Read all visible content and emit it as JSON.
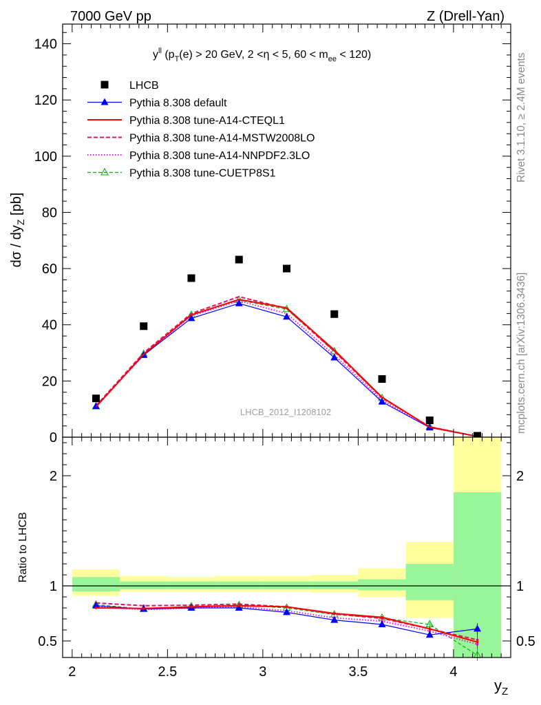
{
  "header": {
    "left": "7000 GeV pp",
    "right": "Z (Drell-Yan)"
  },
  "side_labels": {
    "rivet": "Rivet 3.1.10, ≥ 2.4M events",
    "mcplots": "mcplots.cern.ch [arXiv:1306.3436]"
  },
  "watermark": "LHCB_2012_I1208102",
  "cut_text": {
    "y_main": "y",
    "y_sup": "ll",
    "p1": " (p",
    "p_sub": "T",
    "p2": "(e) > 20 GeV, 2 <η < 5, 60 < m",
    "m_sub": "ee",
    "p3": " < 120)"
  },
  "colors": {
    "data": "#000000",
    "default": "#0000ff",
    "cteql1": "#ff0000",
    "mstw": "#e0106e",
    "nnpdf": "#ff00ff",
    "cuetp": "#00b000",
    "band_inner": "#99f599",
    "band_outer": "#ffff9e"
  },
  "chart_data": [
    {
      "type": "scatter",
      "ylabel_main": "dσ / dy",
      "ylabel_sub": "Z",
      "ylabel_unit": " [pb]",
      "ylim": [
        0,
        147
      ],
      "yticks": [
        0,
        20,
        40,
        60,
        80,
        100,
        120,
        140
      ],
      "xlim": [
        1.95,
        4.3
      ],
      "x": [
        2.125,
        2.375,
        2.625,
        2.875,
        3.125,
        3.375,
        3.625,
        3.875,
        4.125
      ],
      "legend": [
        {
          "key": "data",
          "label": "LHCB"
        },
        {
          "key": "default",
          "label": "Pythia 8.308 default"
        },
        {
          "key": "cteql1",
          "label": "Pythia 8.308 tune-A14-CTEQL1"
        },
        {
          "key": "mstw",
          "label": "Pythia 8.308 tune-A14-MSTW2008LO"
        },
        {
          "key": "nnpdf",
          "label": "Pythia 8.308 tune-A14-NNPDF2.3LO"
        },
        {
          "key": "cuetp",
          "label": "Pythia 8.308 tune-CUETP8S1"
        }
      ],
      "series": [
        {
          "key": "data",
          "values": [
            13.8,
            39.5,
            56.6,
            63.2,
            60.0,
            43.8,
            20.7,
            6.0,
            0.5
          ]
        },
        {
          "key": "default",
          "values": [
            11.0,
            29.2,
            42.3,
            47.6,
            42.8,
            28.3,
            12.6,
            3.4,
            0.3
          ]
        },
        {
          "key": "cteql1",
          "values": [
            10.8,
            29.5,
            43.5,
            49.0,
            46.0,
            31.0,
            14.2,
            3.6,
            0.25
          ]
        },
        {
          "key": "mstw",
          "values": [
            11.2,
            30.0,
            44.0,
            50.0,
            45.8,
            30.5,
            14.0,
            3.7,
            0.26
          ]
        },
        {
          "key": "nnpdf",
          "values": [
            11.0,
            29.2,
            43.2,
            48.5,
            44.0,
            29.2,
            13.2,
            3.5,
            0.25
          ]
        },
        {
          "key": "cuetp",
          "values": [
            10.9,
            29.6,
            43.5,
            48.8,
            45.5,
            30.5,
            13.9,
            3.7,
            0.22
          ]
        }
      ]
    },
    {
      "type": "line",
      "ylabel": "Ratio to LHCB",
      "xlabel_main": "y",
      "xlabel_sub": "Z",
      "ylim": [
        0.35,
        2.35
      ],
      "yticks": [
        0.5,
        1,
        2
      ],
      "ytick_labels": [
        "0.5",
        "1",
        "2"
      ],
      "xlim": [
        1.95,
        4.3
      ],
      "xticks": [
        2,
        2.5,
        3,
        3.5,
        4
      ],
      "xtick_labels": [
        "2",
        "2.5",
        "3",
        "3.5",
        "4"
      ],
      "x": [
        2.125,
        2.375,
        2.625,
        2.875,
        3.125,
        3.375,
        3.625,
        3.875,
        4.125
      ],
      "bin_edges": [
        2.0,
        2.25,
        2.5,
        2.75,
        3.0,
        3.25,
        3.5,
        3.75,
        4.0,
        4.25
      ],
      "band_inner": [
        [
          0.95,
          1.08
        ],
        [
          0.97,
          1.04
        ],
        [
          0.97,
          1.04
        ],
        [
          0.97,
          1.04
        ],
        [
          0.97,
          1.04
        ],
        [
          0.97,
          1.04
        ],
        [
          0.96,
          1.06
        ],
        [
          0.87,
          1.2
        ],
        [
          0.35,
          1.85
        ]
      ],
      "band_outer": [
        [
          0.91,
          1.15
        ],
        [
          0.95,
          1.09
        ],
        [
          0.95,
          1.08
        ],
        [
          0.95,
          1.09
        ],
        [
          0.95,
          1.09
        ],
        [
          0.94,
          1.1
        ],
        [
          0.9,
          1.16
        ],
        [
          0.71,
          1.4
        ],
        [
          0.35,
          2.35
        ]
      ],
      "series": [
        {
          "key": "default",
          "values": [
            0.82,
            0.79,
            0.8,
            0.8,
            0.76,
            0.69,
            0.65,
            0.555,
            0.61
          ],
          "err": [
            0.01,
            0.01,
            0.01,
            0.01,
            0.01,
            0.01,
            0.01,
            0.02,
            0.05
          ]
        },
        {
          "key": "cteql1",
          "values": [
            0.8,
            0.795,
            0.81,
            0.82,
            0.81,
            0.75,
            0.715,
            0.61,
            0.49
          ],
          "err": [
            0.01,
            0.01,
            0.01,
            0.01,
            0.01,
            0.01,
            0.01,
            0.02,
            0.06
          ]
        },
        {
          "key": "mstw",
          "values": [
            0.845,
            0.82,
            0.825,
            0.835,
            0.81,
            0.745,
            0.705,
            0.61,
            0.51
          ],
          "err": [
            0.01,
            0.01,
            0.01,
            0.01,
            0.01,
            0.01,
            0.01,
            0.02,
            0.06
          ]
        },
        {
          "key": "nnpdf",
          "values": [
            0.81,
            0.785,
            0.8,
            0.81,
            0.775,
            0.71,
            0.68,
            0.59,
            0.47
          ],
          "err": [
            0.01,
            0.01,
            0.01,
            0.01,
            0.01,
            0.01,
            0.01,
            0.02,
            0.06
          ]
        },
        {
          "key": "cuetp",
          "values": [
            0.83,
            0.79,
            0.815,
            0.825,
            0.8,
            0.74,
            0.71,
            0.65,
            0.37
          ],
          "err": [
            0.01,
            0.01,
            0.01,
            0.01,
            0.01,
            0.01,
            0.01,
            0.02,
            0.05
          ]
        }
      ]
    }
  ]
}
